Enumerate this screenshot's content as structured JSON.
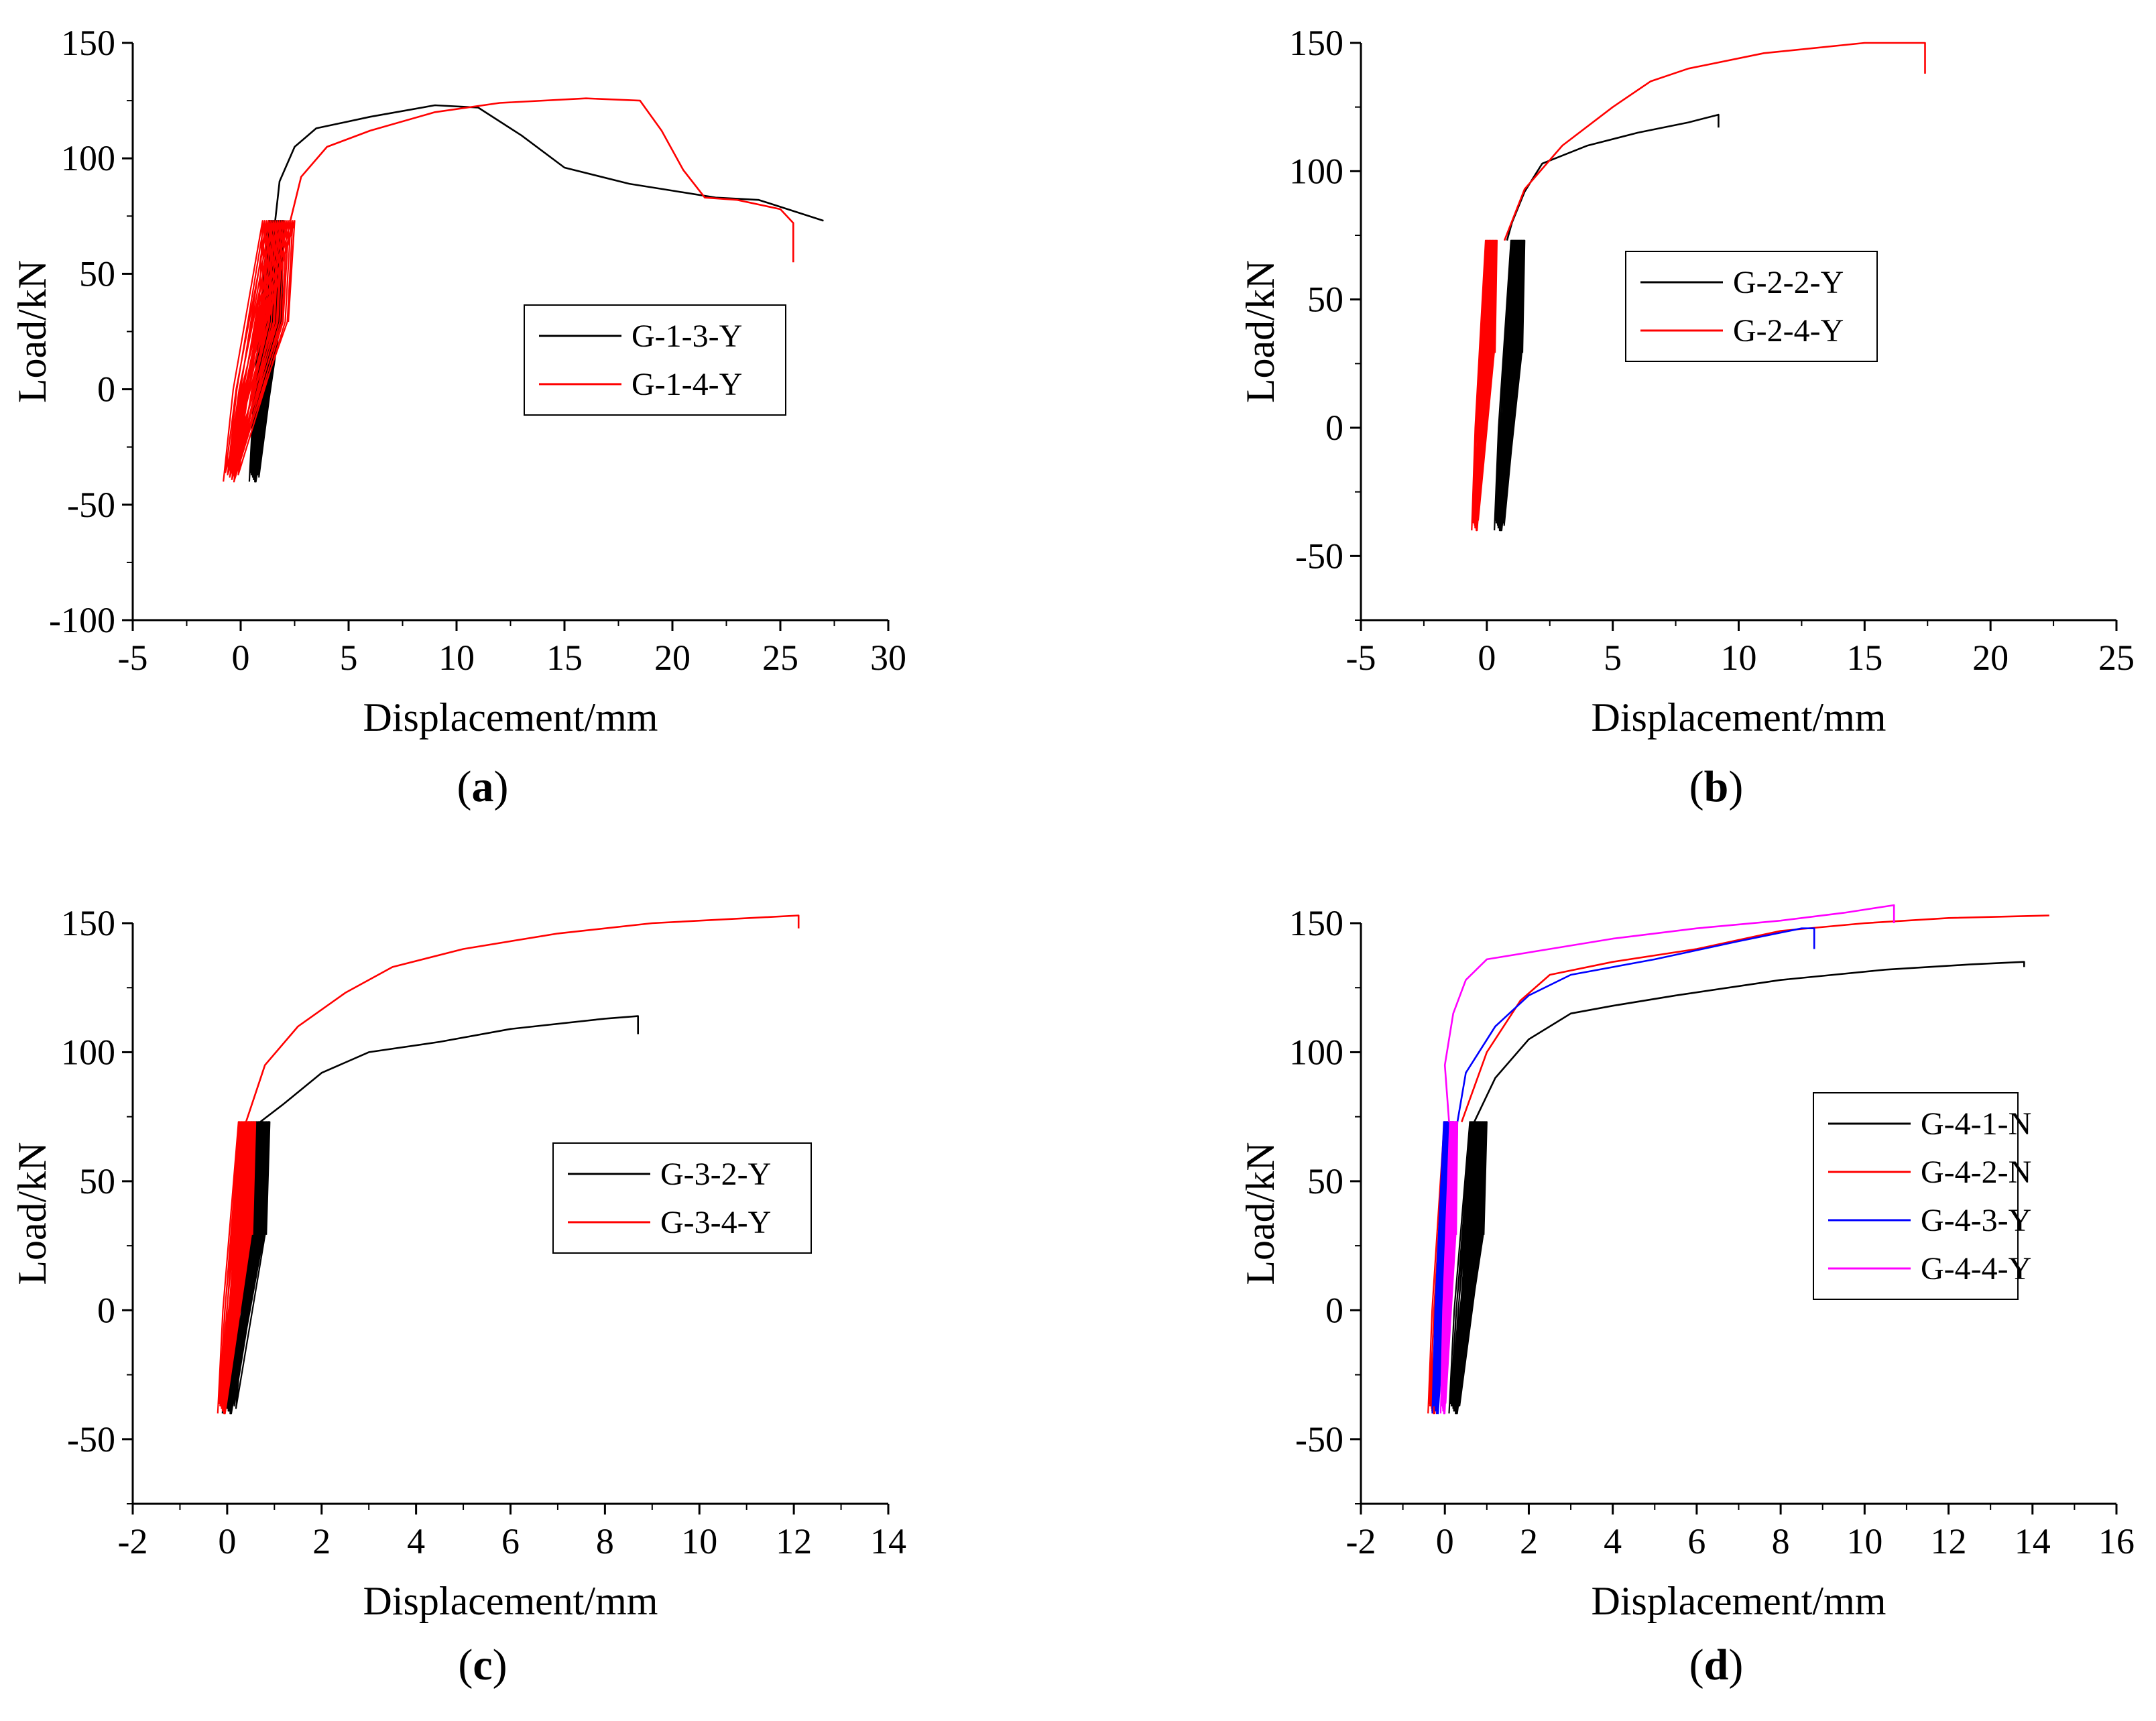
{
  "figure": {
    "panels": [
      "a",
      "b",
      "c",
      "d"
    ]
  },
  "chart_data": [
    {
      "id": "a",
      "type": "line",
      "panel_label": "a",
      "xlabel": "Displacement/mm",
      "ylabel": "Load/kN",
      "xlim": [
        -5,
        30
      ],
      "ylim": [
        -100,
        150
      ],
      "xticks": [
        -5,
        0,
        5,
        10,
        15,
        20,
        25,
        30
      ],
      "yticks": [
        -100,
        -50,
        0,
        50,
        100,
        150
      ],
      "legend": "center-right",
      "series": [
        {
          "name": "G-1-3-Y",
          "color": "#000000",
          "cyclic": {
            "xmin": 0.4,
            "xmax": 2.0,
            "ymax": 73,
            "ymin": -40,
            "cycles": 22,
            "drift": 0.5
          },
          "envelope": [
            [
              1.6,
              73
            ],
            [
              1.8,
              90
            ],
            [
              2.5,
              105
            ],
            [
              3.5,
              113
            ],
            [
              6,
              118
            ],
            [
              9,
              123
            ],
            [
              11,
              122
            ],
            [
              13,
              110
            ],
            [
              15,
              96
            ],
            [
              18,
              89
            ],
            [
              20,
              86
            ],
            [
              22,
              83
            ],
            [
              24,
              82
            ],
            [
              26,
              76
            ],
            [
              27,
              73
            ]
          ]
        },
        {
          "name": "G-1-4-Y",
          "color": "#ff0000",
          "cyclic": {
            "xmin": -0.8,
            "xmax": 2.5,
            "ymax": 73,
            "ymin": -40,
            "cycles": 18,
            "drift": 0.6
          },
          "envelope": [
            [
              2.3,
              73
            ],
            [
              2.8,
              92
            ],
            [
              4,
              105
            ],
            [
              6,
              112
            ],
            [
              9,
              120
            ],
            [
              12,
              124
            ],
            [
              16,
              126
            ],
            [
              18.5,
              125
            ],
            [
              19.5,
              112
            ],
            [
              20.5,
              95
            ],
            [
              21.5,
              83
            ],
            [
              23,
              82
            ],
            [
              25,
              78
            ],
            [
              25.6,
              72
            ],
            [
              25.6,
              55
            ]
          ]
        }
      ]
    },
    {
      "id": "b",
      "type": "line",
      "panel_label": "b",
      "xlabel": "Displacement/mm",
      "ylabel": "Load/kN",
      "xlim": [
        -5,
        25
      ],
      "ylim": [
        -75,
        150
      ],
      "xticks": [
        -5,
        0,
        5,
        10,
        15,
        20,
        25
      ],
      "yticks": [
        -50,
        0,
        50,
        100,
        150
      ],
      "legend": "center-right",
      "series": [
        {
          "name": "G-2-2-Y",
          "color": "#000000",
          "cyclic": {
            "xmin": 0.3,
            "xmax": 1.5,
            "ymax": 73,
            "ymin": -40,
            "cycles": 22,
            "drift": 0.5
          },
          "envelope": [
            [
              0.8,
              73
            ],
            [
              1.0,
              80
            ],
            [
              1.5,
              92
            ],
            [
              2.2,
              103
            ],
            [
              4,
              110
            ],
            [
              6,
              115
            ],
            [
              8,
              119
            ],
            [
              9.2,
              122
            ],
            [
              9.2,
              117
            ]
          ]
        },
        {
          "name": "G-2-4-Y",
          "color": "#ff0000",
          "cyclic": {
            "xmin": -0.6,
            "xmax": 0.4,
            "ymax": 73,
            "ymin": -40,
            "cycles": 14,
            "drift": 0.3
          },
          "envelope": [
            [
              0.7,
              73
            ],
            [
              1.5,
              93
            ],
            [
              3,
              110
            ],
            [
              5,
              125
            ],
            [
              6.5,
              135
            ],
            [
              8,
              140
            ],
            [
              11,
              146
            ],
            [
              15,
              150
            ],
            [
              17.4,
              150
            ],
            [
              17.4,
              138
            ]
          ]
        }
      ]
    },
    {
      "id": "c",
      "type": "line",
      "panel_label": "c",
      "xlabel": "Displacement/mm",
      "ylabel": "Load/kN",
      "xlim": [
        -2,
        14
      ],
      "ylim": [
        -75,
        150
      ],
      "xticks": [
        -2,
        0,
        2,
        4,
        6,
        8,
        10,
        12,
        14
      ],
      "yticks": [
        -50,
        0,
        50,
        100,
        150
      ],
      "legend": "center-right",
      "series": [
        {
          "name": "G-3-2-Y",
          "color": "#000000",
          "cyclic": {
            "xmin": -0.1,
            "xmax": 0.9,
            "ymax": 73,
            "ymin": -40,
            "cycles": 20,
            "drift": 0.3
          },
          "envelope": [
            [
              0.7,
              73
            ],
            [
              1.2,
              80
            ],
            [
              2,
              92
            ],
            [
              3,
              100
            ],
            [
              4.5,
              104
            ],
            [
              6,
              109
            ],
            [
              8,
              113
            ],
            [
              8.7,
              114
            ],
            [
              8.7,
              107
            ]
          ]
        },
        {
          "name": "G-3-4-Y",
          "color": "#ff0000",
          "cyclic": {
            "xmin": -0.2,
            "xmax": 0.6,
            "ymax": 73,
            "ymin": -40,
            "cycles": 16,
            "drift": 0.2
          },
          "envelope": [
            [
              0.4,
              73
            ],
            [
              0.8,
              95
            ],
            [
              1.5,
              110
            ],
            [
              2.5,
              123
            ],
            [
              3.5,
              133
            ],
            [
              5,
              140
            ],
            [
              7,
              146
            ],
            [
              9,
              150
            ],
            [
              12.1,
              153
            ],
            [
              12.1,
              148
            ]
          ]
        }
      ]
    },
    {
      "id": "d",
      "type": "line",
      "panel_label": "d",
      "xlabel": "Displacement/mm",
      "ylabel": "Load/kN",
      "xlim": [
        -2,
        16
      ],
      "ylim": [
        -75,
        150
      ],
      "xticks": [
        -2,
        0,
        2,
        4,
        6,
        8,
        10,
        12,
        14,
        16
      ],
      "yticks": [
        -50,
        0,
        50,
        100,
        150
      ],
      "legend": "center-right",
      "series": [
        {
          "name": "G-4-1-N",
          "color": "#000000",
          "cyclic": {
            "xmin": 0.1,
            "xmax": 1.0,
            "ymax": 73,
            "ymin": -40,
            "cycles": 18,
            "drift": 0.3
          },
          "envelope": [
            [
              0.7,
              73
            ],
            [
              1.2,
              90
            ],
            [
              2,
              105
            ],
            [
              3,
              115
            ],
            [
              4,
              118
            ],
            [
              5.5,
              122
            ],
            [
              8,
              128
            ],
            [
              10.5,
              132
            ],
            [
              12.5,
              134
            ],
            [
              13.8,
              135
            ],
            [
              13.8,
              133
            ]
          ]
        },
        {
          "name": "G-4-2-N",
          "color": "#ff0000",
          "cyclic": {
            "xmin": -0.4,
            "xmax": 0.3,
            "ymax": 73,
            "ymin": -40,
            "cycles": 12,
            "drift": 0.2
          },
          "envelope": [
            [
              0.4,
              73
            ],
            [
              1.0,
              100
            ],
            [
              1.8,
              120
            ],
            [
              2.5,
              130
            ],
            [
              4,
              135
            ],
            [
              6,
              140
            ],
            [
              8,
              147
            ],
            [
              10,
              150
            ],
            [
              12,
              152
            ],
            [
              14.4,
              153
            ]
          ]
        },
        {
          "name": "G-4-3-Y",
          "color": "#0000ff",
          "cyclic": {
            "xmin": -0.3,
            "xmax": 0.2,
            "ymax": 73,
            "ymin": -40,
            "cycles": 12,
            "drift": 0.2
          },
          "envelope": [
            [
              0.3,
              73
            ],
            [
              0.5,
              92
            ],
            [
              1.2,
              110
            ],
            [
              2,
              122
            ],
            [
              3,
              130
            ],
            [
              5,
              136
            ],
            [
              7,
              143
            ],
            [
              8.5,
              148
            ],
            [
              8.8,
              148
            ],
            [
              8.8,
              140
            ]
          ]
        },
        {
          "name": "G-4-4-Y",
          "color": "#ff00ff",
          "cyclic": {
            "xmin": -0.1,
            "xmax": 0.3,
            "ymax": 73,
            "ymin": -40,
            "cycles": 14,
            "drift": 0.15
          },
          "envelope": [
            [
              0.1,
              73
            ],
            [
              0.0,
              95
            ],
            [
              0.2,
              115
            ],
            [
              0.5,
              128
            ],
            [
              1.0,
              136
            ],
            [
              2.5,
              140
            ],
            [
              4,
              144
            ],
            [
              6,
              148
            ],
            [
              8,
              151
            ],
            [
              9.5,
              154
            ],
            [
              10.7,
              157
            ],
            [
              10.7,
              150
            ]
          ]
        }
      ]
    }
  ]
}
